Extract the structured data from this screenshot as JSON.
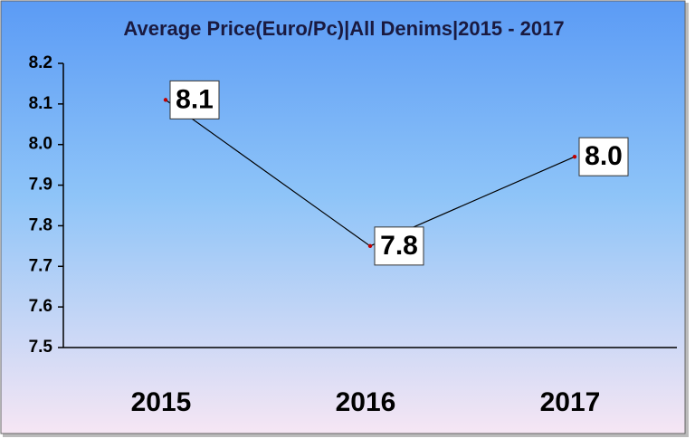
{
  "chart_data": {
    "type": "line",
    "title": "Average Price(Euro/Pc)|All Denims|2015 - 2017",
    "categories": [
      "2015",
      "2016",
      "2017"
    ],
    "values": [
      8.11,
      7.75,
      7.97
    ],
    "value_labels": [
      "8.1",
      "7.8",
      "8.0"
    ],
    "color": "#000000",
    "marker_color": "#c00000",
    "ylim": [
      7.5,
      8.2
    ],
    "yticks": [
      7.5,
      7.6,
      7.7,
      7.8,
      7.9,
      {
        "value": 8,
        "label": "8.0"
      },
      8.1,
      8.2
    ]
  }
}
